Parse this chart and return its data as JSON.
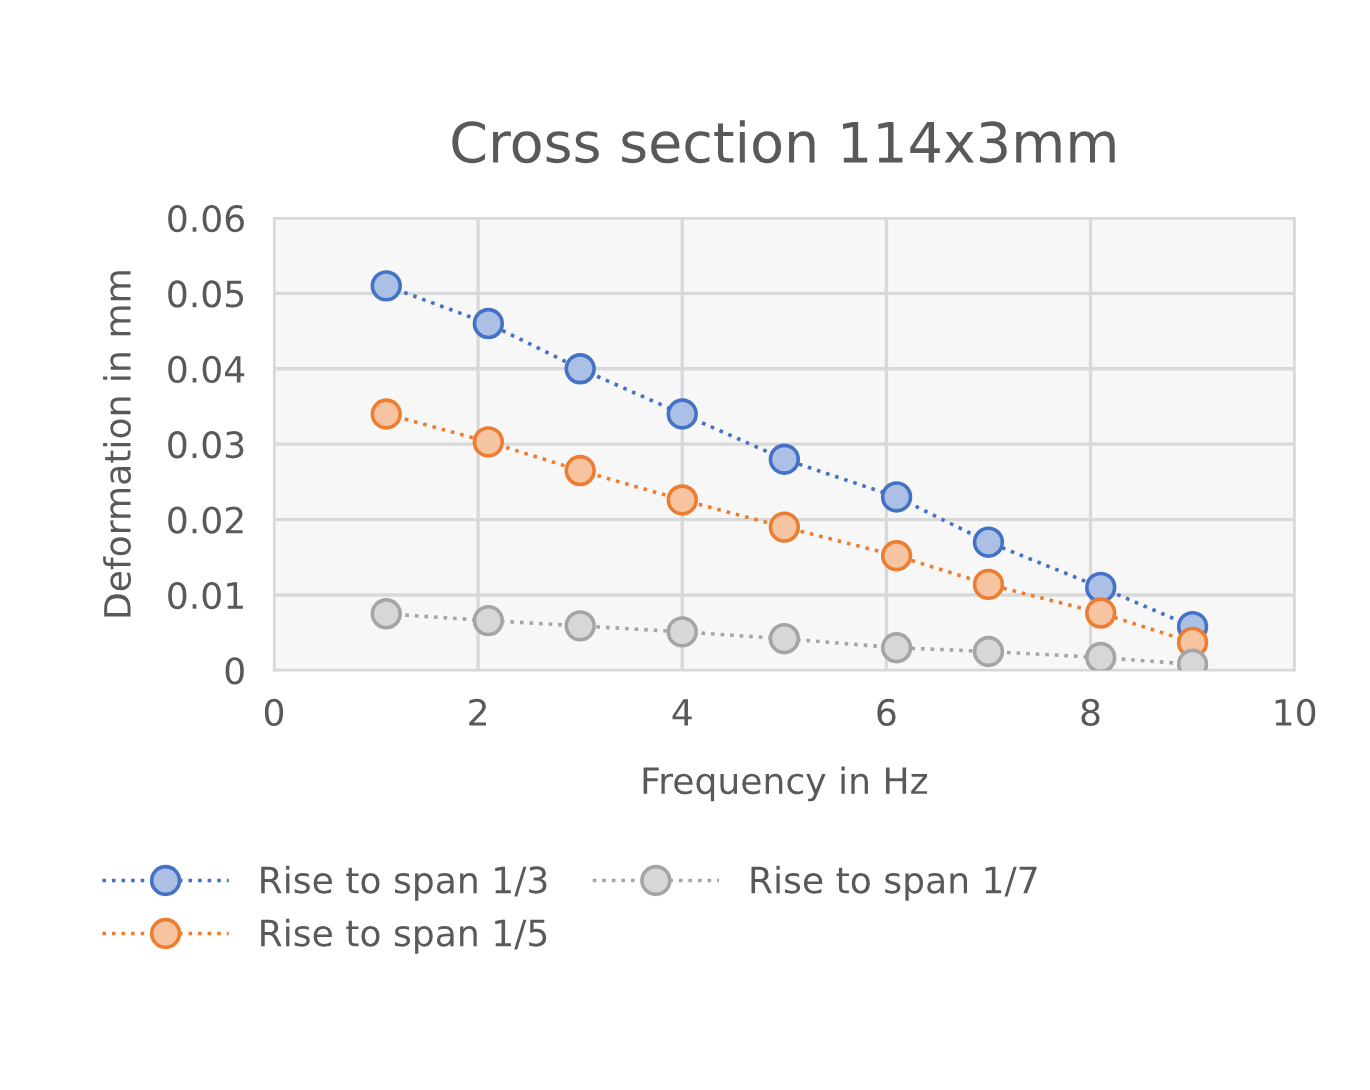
{
  "chart_data": {
    "type": "line",
    "title": "Cross section 114x3mm",
    "xlabel": "Frequency in Hz",
    "ylabel": "Deformation in mm",
    "x": [
      1.1,
      2.1,
      3,
      4,
      5,
      6.1,
      7,
      8.1,
      9
    ],
    "series": [
      {
        "name": "Rise to span 1/3",
        "color": "#4472c4",
        "values": [
          0.051,
          0.046,
          0.04,
          0.034,
          0.028,
          0.023,
          0.017,
          0.011,
          0.0058
        ]
      },
      {
        "name": "Rise to span 1/5",
        "color": "#ed7d31",
        "values": [
          0.034,
          0.0303,
          0.0265,
          0.0226,
          0.019,
          0.0152,
          0.0114,
          0.0076,
          0.0037
        ]
      },
      {
        "name": "Rise to span 1/7",
        "color": "#a5a5a5",
        "values": [
          0.0075,
          0.0066,
          0.0059,
          0.0051,
          0.0042,
          0.003,
          0.0025,
          0.0017,
          0.0008
        ]
      }
    ],
    "xlim": [
      0,
      10
    ],
    "xticks": [
      0,
      2,
      4,
      6,
      8,
      10
    ],
    "ylim": [
      0,
      0.06
    ],
    "yticks": [
      0,
      0.01,
      0.02,
      0.03,
      0.04,
      0.05,
      0.06
    ],
    "grid": true,
    "legend": "bottom",
    "marker": "circle",
    "line_style": "dotted"
  }
}
